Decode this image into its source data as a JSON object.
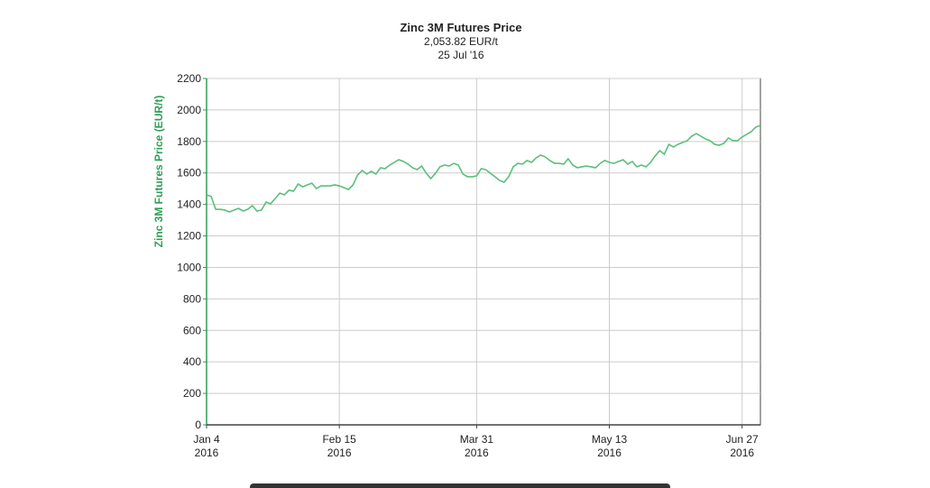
{
  "chart_data": {
    "type": "line",
    "title": "Zinc 3M Futures Price",
    "subtitle": "2,053.82 EUR/t",
    "date_label": "25 Jul '16",
    "y_label": "Zinc 3M Futures Price (EUR/t)",
    "color": "#5cbf7c",
    "grid": true,
    "categories": [
      [
        "Jan 4",
        "2016"
      ],
      null,
      null,
      null,
      null,
      null,
      null,
      null,
      null,
      null,
      null,
      null,
      null,
      null,
      null,
      null,
      null,
      null,
      null,
      null,
      null,
      null,
      null,
      null,
      null,
      null,
      null,
      null,
      null,
      [
        "Feb 15",
        "2016"
      ],
      null,
      null,
      null,
      null,
      null,
      null,
      null,
      null,
      null,
      null,
      null,
      null,
      null,
      null,
      null,
      null,
      null,
      null,
      null,
      null,
      null,
      null,
      null,
      null,
      null,
      null,
      null,
      null,
      null,
      [
        "Mar 31",
        "2016"
      ],
      null,
      null,
      null,
      null,
      null,
      null,
      null,
      null,
      null,
      null,
      null,
      null,
      null,
      null,
      null,
      null,
      null,
      null,
      null,
      null,
      null,
      null,
      null,
      null,
      null,
      null,
      null,
      null,
      [
        "May 13",
        "2016"
      ],
      null,
      null,
      null,
      null,
      null,
      null,
      null,
      null,
      null,
      null,
      null,
      null,
      null,
      null,
      null,
      null,
      null,
      null,
      null,
      null,
      null,
      null,
      null,
      null,
      null,
      null,
      null,
      null,
      [
        "Jun 27",
        "2016"
      ],
      null,
      null,
      null,
      null
    ],
    "values": [
      1461,
      1451,
      1369,
      1369,
      1364,
      1352,
      1364,
      1375,
      1358,
      1369,
      1392,
      1358,
      1364,
      1415,
      1404,
      1438,
      1472,
      1461,
      1490,
      1484,
      1530,
      1512,
      1524,
      1535,
      1501,
      1518,
      1518,
      1518,
      1524,
      1518,
      1507,
      1495,
      1524,
      1587,
      1616,
      1593,
      1610,
      1593,
      1633,
      1627,
      1650,
      1667,
      1684,
      1673,
      1656,
      1633,
      1621,
      1644,
      1598,
      1564,
      1598,
      1639,
      1650,
      1644,
      1661,
      1650,
      1593,
      1576,
      1576,
      1581,
      1627,
      1621,
      1598,
      1576,
      1553,
      1541,
      1576,
      1639,
      1661,
      1656,
      1679,
      1667,
      1696,
      1713,
      1702,
      1679,
      1661,
      1661,
      1656,
      1690,
      1650,
      1633,
      1639,
      1644,
      1639,
      1633,
      1661,
      1679,
      1667,
      1661,
      1673,
      1684,
      1656,
      1673,
      1639,
      1650,
      1639,
      1667,
      1707,
      1742,
      1719,
      1782,
      1765,
      1782,
      1793,
      1805,
      1833,
      1850,
      1833,
      1816,
      1805,
      1782,
      1776,
      1788,
      1822,
      1805,
      1805,
      1828,
      1845,
      1862,
      1891,
      1902
    ],
    "ylim": [
      0,
      2200
    ],
    "yticks": [
      0,
      200,
      400,
      600,
      800,
      1000,
      1200,
      1400,
      1600,
      1800,
      2000,
      2200
    ]
  }
}
